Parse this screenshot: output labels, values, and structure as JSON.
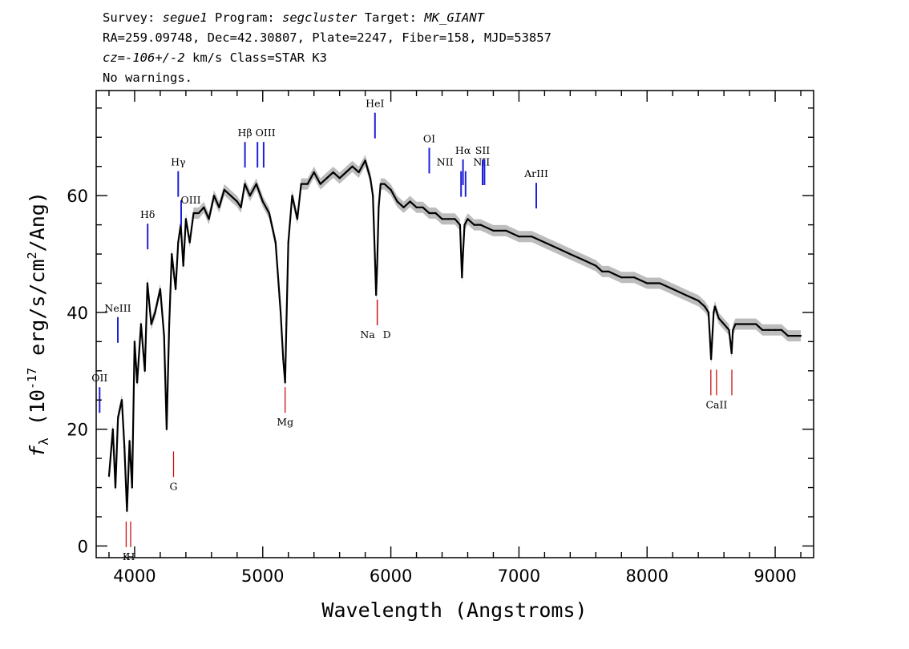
{
  "header": {
    "survey_label": "Survey:",
    "survey": "segue1",
    "program_label": "Program:",
    "program": "segcluster",
    "target_label": "Target:",
    "target": "MK_GIANT",
    "line2": "RA=259.09748, Dec=42.30807, Plate=2247, Fiber=158, MJD=53857",
    "cz": "cz=-106+/-2",
    "cz_unit": "km/s",
    "class": "Class=STAR K3",
    "warnings": "No warnings."
  },
  "colors": {
    "flux": "#000000",
    "error_band": "#bdbdbd",
    "emission_marker": "#1f1fd6",
    "absorption_marker": "#cc1111"
  },
  "chart_data": {
    "type": "line",
    "title": "",
    "xlabel": "Wavelength (Angstroms)",
    "ylabel": "f_λ (10^-17 erg/s/cm^2/Ang)",
    "xlim": [
      3700,
      9300
    ],
    "ylim": [
      -2,
      78
    ],
    "x_ticks": [
      4000,
      5000,
      6000,
      7000,
      8000,
      9000
    ],
    "y_ticks": [
      0,
      20,
      40,
      60
    ],
    "grid": false,
    "series": [
      {
        "x": [
          3800,
          3830,
          3850,
          3870,
          3900,
          3920,
          3940,
          3960,
          3980,
          4000,
          4020,
          4050,
          4080,
          4100,
          4130,
          4160,
          4200,
          4230,
          4250,
          4270,
          4290,
          4320,
          4340,
          4360,
          4380,
          4400,
          4430,
          4460,
          4500,
          4540,
          4580,
          4620,
          4660,
          4700,
          4750,
          4800,
          4830,
          4860,
          4900,
          4950,
          5000,
          5050,
          5100,
          5140,
          5160,
          5175,
          5185,
          5200,
          5230,
          5270,
          5300,
          5350,
          5400,
          5450,
          5500,
          5550,
          5600,
          5650,
          5700,
          5750,
          5800,
          5840,
          5860,
          5875,
          5885,
          5893,
          5905,
          5920,
          5950,
          6000,
          6050,
          6100,
          6150,
          6200,
          6250,
          6300,
          6350,
          6400,
          6450,
          6500,
          6540,
          6555,
          6563,
          6575,
          6600,
          6650,
          6700,
          6800,
          6900,
          7000,
          7100,
          7200,
          7300,
          7400,
          7500,
          7600,
          7650,
          7700,
          7800,
          7900,
          8000,
          8100,
          8200,
          8300,
          8400,
          8450,
          8480,
          8500,
          8520,
          8530,
          8545,
          8560,
          8600,
          8640,
          8660,
          8670,
          8690,
          8750,
          8800,
          8850,
          8900,
          8950,
          9000,
          9050,
          9100,
          9150,
          9200
        ],
        "values": [
          12,
          20,
          10,
          22,
          25,
          17,
          6,
          18,
          10,
          35,
          28,
          38,
          30,
          45,
          38,
          40,
          44,
          36,
          20,
          38,
          50,
          44,
          52,
          55,
          48,
          56,
          52,
          57,
          57,
          58,
          56,
          60,
          58,
          61,
          60,
          59,
          58,
          62,
          60,
          62,
          59,
          57,
          52,
          40,
          32,
          28,
          38,
          52,
          60,
          56,
          62,
          62,
          64,
          62,
          63,
          64,
          63,
          64,
          65,
          64,
          66,
          63,
          60,
          50,
          43,
          48,
          58,
          62,
          62,
          61,
          59,
          58,
          59,
          58,
          58,
          57,
          57,
          56,
          56,
          56,
          55,
          46,
          50,
          55,
          56,
          55,
          55,
          54,
          54,
          53,
          53,
          52,
          51,
          50,
          49,
          48,
          47,
          47,
          46,
          46,
          45,
          45,
          44,
          43,
          42,
          41,
          40,
          32,
          40,
          41,
          40,
          39,
          38,
          37,
          33,
          37,
          38,
          38,
          38,
          38,
          37,
          37,
          37,
          37,
          36,
          36,
          36
        ]
      }
    ],
    "annotations": [
      {
        "label": "OII",
        "wavelength": 3727,
        "kind": "emission",
        "value": 25
      },
      {
        "label": "NeIII",
        "wavelength": 3869,
        "kind": "emission",
        "value": 37
      },
      {
        "label": "Hδ",
        "wavelength": 4102,
        "kind": "emission",
        "value": 53
      },
      {
        "label": "Hγ",
        "wavelength": 4340,
        "kind": "emission",
        "value": 62
      },
      {
        "label": "OIII",
        "wavelength": 4363,
        "kind": "emission",
        "value": 57
      },
      {
        "label": "Hβ",
        "wavelength": 4861,
        "kind": "emission",
        "value": 67
      },
      {
        "label": "OIII",
        "wavelength": 4959,
        "kind": "emission",
        "value": 67
      },
      {
        "label": "OIII",
        "wavelength": 5007,
        "kind": "emission",
        "value": 67
      },
      {
        "label": "HeI",
        "wavelength": 5876,
        "kind": "emission",
        "value": 72
      },
      {
        "label": "OI",
        "wavelength": 6300,
        "kind": "emission",
        "value": 66
      },
      {
        "label": "NII",
        "wavelength": 6548,
        "kind": "emission",
        "value": 62
      },
      {
        "label": "Hα",
        "wavelength": 6563,
        "kind": "emission",
        "value": 64
      },
      {
        "label": "NII",
        "wavelength": 6583,
        "kind": "emission",
        "value": 62
      },
      {
        "label": "SII",
        "wavelength": 6716,
        "kind": "emission",
        "value": 64
      },
      {
        "label": "SII",
        "wavelength": 6731,
        "kind": "emission",
        "value": 64
      },
      {
        "label": "ArIII",
        "wavelength": 7135,
        "kind": "emission",
        "value": 60
      },
      {
        "label": "K",
        "wavelength": 3934,
        "kind": "absorption",
        "value": 2
      },
      {
        "label": "H",
        "wavelength": 3969,
        "kind": "absorption",
        "value": 2
      },
      {
        "label": "G",
        "wavelength": 4304,
        "kind": "absorption",
        "value": 14
      },
      {
        "label": "Mg",
        "wavelength": 5175,
        "kind": "absorption",
        "value": 25
      },
      {
        "label": "Na",
        "wavelength": 5894,
        "kind": "absorption",
        "value": 40
      },
      {
        "label": "D",
        "wavelength": 5894,
        "kind": "absorption",
        "value": 40
      },
      {
        "label": "CaII",
        "wavelength": 8498,
        "kind": "absorption",
        "value": 28
      },
      {
        "label": "CaII",
        "wavelength": 8542,
        "kind": "absorption",
        "value": 28
      },
      {
        "label": "CaII",
        "wavelength": 8662,
        "kind": "absorption",
        "value": 28
      }
    ]
  }
}
